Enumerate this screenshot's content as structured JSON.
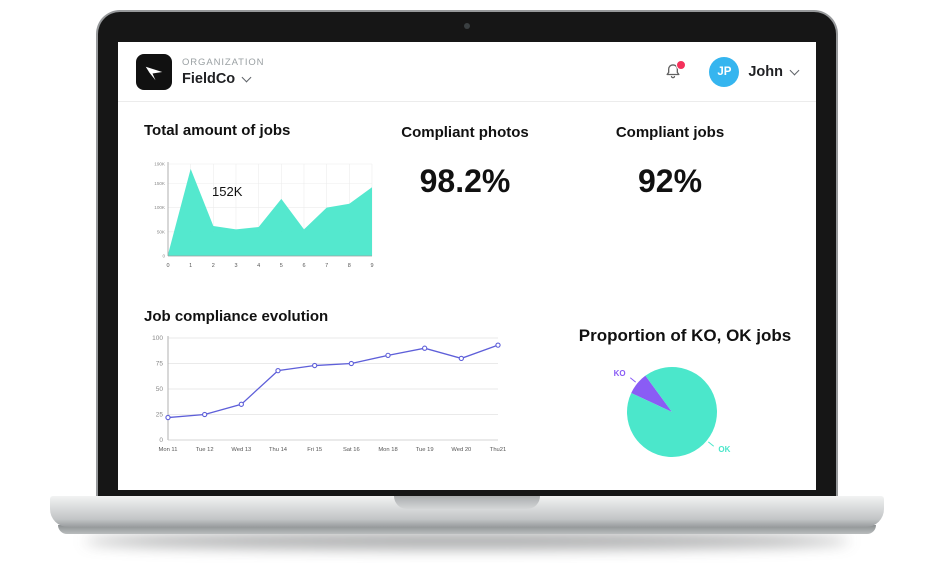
{
  "header": {
    "org_label": "ORGANIZATION",
    "org_name": "FieldCo",
    "user_initials": "JP",
    "user_name": "John"
  },
  "icons": {
    "notifications": "bell-icon",
    "org_selector": "chevron-down-icon",
    "user_menu": "chevron-down-icon",
    "logo": "arrow-logo-icon"
  },
  "colors": {
    "accent_teal": "#4BE7CB",
    "accent_purple": "#8A5CF5",
    "line_purple": "#5E5FD9",
    "avatar_blue": "#35B5EF",
    "notification_pink": "#F4315B",
    "logo_black": "#111111"
  },
  "stats": [
    {
      "label": "Compliant photos",
      "value": "98.2%"
    },
    {
      "label": "Compliant jobs",
      "value": "92%"
    }
  ],
  "chart_data": [
    {
      "type": "area",
      "title": "Total amount of jobs",
      "x": [
        "0",
        "1",
        "2",
        "3",
        "4",
        "5",
        "6",
        "7",
        "8",
        "9"
      ],
      "values": [
        3,
        180,
        62,
        55,
        60,
        118,
        55,
        100,
        108,
        142
      ],
      "ylim": [
        0,
        190
      ],
      "yticks": [
        {
          "v": 0,
          "label": "0"
        },
        {
          "v": 50,
          "label": "50K"
        },
        {
          "v": 100,
          "label": "100K"
        },
        {
          "v": 150,
          "label": "150K"
        },
        {
          "v": 190,
          "label": "190K"
        }
      ],
      "annotation": "152K",
      "color": "#4BE7CB",
      "grid": true
    },
    {
      "type": "line",
      "title": "Job compliance evolution",
      "categories": [
        "Mon 11",
        "Tue 12",
        "Wed 13",
        "Thu 14",
        "Fri 15",
        "Sat 16",
        "Mon 18",
        "Tue 19",
        "Wed 20",
        "Thu21"
      ],
      "values": [
        22,
        25,
        35,
        68,
        73,
        75,
        83,
        90,
        80,
        93
      ],
      "ylim": [
        0,
        100
      ],
      "yticks": [
        {
          "v": 0,
          "label": "0"
        },
        {
          "v": 25,
          "label": "25"
        },
        {
          "v": 50,
          "label": "50"
        },
        {
          "v": 75,
          "label": "75"
        },
        {
          "v": 100,
          "label": "100"
        }
      ],
      "color": "#5E5FD9",
      "grid": true
    },
    {
      "type": "pie",
      "title": "Proportion of KO, OK jobs",
      "start_deg": 295,
      "slices": [
        {
          "label": "KO",
          "value": 8,
          "color": "#8A5CF5"
        },
        {
          "label": "OK",
          "value": 92,
          "color": "#4BE7CB"
        }
      ]
    }
  ]
}
